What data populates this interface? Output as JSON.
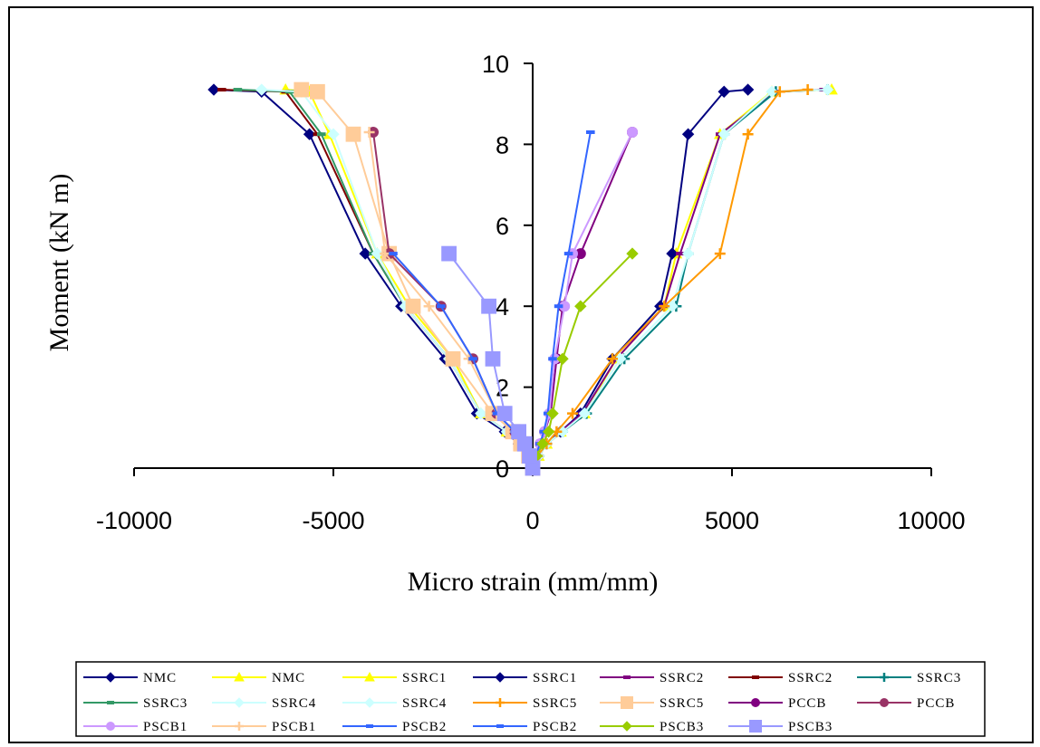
{
  "chart_data": {
    "type": "line",
    "title": "",
    "xlabel": "Micro strain (mm/mm)",
    "ylabel": "Moment (kN m)",
    "xlim": [
      -10000,
      10000
    ],
    "ylim": [
      0,
      10
    ],
    "x_ticks": [
      "-10000",
      "-5000",
      "0",
      "5000",
      "10000"
    ],
    "y_ticks": [
      "0",
      "2",
      "4",
      "6",
      "8",
      "10"
    ],
    "legend_position": "bottom",
    "series": [
      {
        "name": "NMC",
        "color": "#000080",
        "marker": "diamond",
        "x": [
          0,
          -120,
          -350,
          -700,
          -1400,
          -2200,
          -3300,
          -4200,
          -5600,
          -6800,
          -8000
        ],
        "y": [
          0,
          0.3,
          0.6,
          0.9,
          1.35,
          2.7,
          4.0,
          5.3,
          8.25,
          9.3,
          9.35
        ]
      },
      {
        "name": "NMC",
        "color": "#FFFF00",
        "marker": "triangle",
        "x": [
          0,
          150,
          350,
          700,
          1300,
          2100,
          3300,
          3600,
          4700,
          6000,
          7500
        ],
        "y": [
          0,
          0.3,
          0.6,
          0.9,
          1.35,
          2.7,
          4.0,
          5.3,
          8.25,
          9.3,
          9.35
        ]
      },
      {
        "name": "SSRC1",
        "color": "#FFFF00",
        "marker": "triangle",
        "x": [
          0,
          -120,
          -300,
          -650,
          -1300,
          -2000,
          -3100,
          -3900,
          -5100,
          -5600,
          -6200
        ],
        "y": [
          0,
          0.3,
          0.6,
          0.9,
          1.35,
          2.7,
          4.0,
          5.3,
          8.25,
          9.3,
          9.35
        ]
      },
      {
        "name": "SSRC1",
        "color": "#000080",
        "marker": "diamond",
        "x": [
          0,
          150,
          350,
          700,
          1200,
          2000,
          3200,
          3500,
          3900,
          4800,
          5400
        ],
        "y": [
          0,
          0.3,
          0.6,
          0.9,
          1.35,
          2.7,
          4.0,
          5.3,
          8.25,
          9.3,
          9.35
        ]
      },
      {
        "name": "SSRC2",
        "color": "#800080",
        "marker": "dash",
        "x": [
          0,
          150,
          350,
          700,
          1250,
          2100,
          3300,
          3700,
          4700,
          6100,
          7300
        ],
        "y": [
          0,
          0.3,
          0.6,
          0.9,
          1.35,
          2.7,
          4.0,
          5.3,
          8.25,
          9.3,
          9.35
        ]
      },
      {
        "name": "SSRC2",
        "color": "#800000",
        "marker": "dash",
        "x": [
          0,
          -120,
          -320,
          -650,
          -1300,
          -2100,
          -3200,
          -4000,
          -5400,
          -6200,
          -7800
        ],
        "y": [
          0,
          0.3,
          0.6,
          0.9,
          1.35,
          2.7,
          4.0,
          5.3,
          8.25,
          9.3,
          9.35
        ]
      },
      {
        "name": "SSRC3",
        "color": "#008080",
        "marker": "plus",
        "x": [
          0,
          150,
          350,
          750,
          1350,
          2300,
          3600,
          3900,
          4800,
          6100,
          7400
        ],
        "y": [
          0,
          0.3,
          0.6,
          0.9,
          1.35,
          2.7,
          4.0,
          5.3,
          8.25,
          9.3,
          9.35
        ]
      },
      {
        "name": "SSRC3",
        "color": "#339966",
        "marker": "dash",
        "x": [
          0,
          -120,
          -330,
          -650,
          -1300,
          -2100,
          -3200,
          -4000,
          -5300,
          -6100,
          -7400
        ],
        "y": [
          0,
          0.3,
          0.6,
          0.9,
          1.35,
          2.7,
          4.0,
          5.3,
          8.25,
          9.3,
          9.35
        ]
      },
      {
        "name": "SSRC4",
        "color": "#CCFFFF",
        "marker": "diamond",
        "x": [
          0,
          150,
          350,
          750,
          1300,
          2200,
          3500,
          3900,
          4800,
          6000,
          7400
        ],
        "y": [
          0,
          0.3,
          0.6,
          0.9,
          1.35,
          2.7,
          4.0,
          5.3,
          8.25,
          9.3,
          9.35
        ]
      },
      {
        "name": "SSRC4",
        "color": "#CCFFFF",
        "marker": "diamond",
        "x": [
          0,
          -120,
          -330,
          -650,
          -1300,
          -2100,
          -3200,
          -3900,
          -5000,
          -5800,
          -6800
        ],
        "y": [
          0,
          0.3,
          0.6,
          0.9,
          1.35,
          2.7,
          4.0,
          5.3,
          8.25,
          9.3,
          9.35
        ]
      },
      {
        "name": "SSRC5",
        "color": "#FF9900",
        "marker": "plus",
        "x": [
          0,
          120,
          350,
          600,
          1000,
          2000,
          3300,
          4700,
          5400,
          6200,
          6900
        ],
        "y": [
          0,
          0.3,
          0.6,
          0.9,
          1.35,
          2.7,
          4.0,
          5.3,
          8.25,
          9.3,
          9.35
        ]
      },
      {
        "name": "SSRC5",
        "color": "#FFCC99",
        "marker": "square",
        "x": [
          0,
          -100,
          -300,
          -500,
          -1000,
          -2000,
          -3000,
          -3600,
          -4500,
          -5400,
          -5800
        ],
        "y": [
          0,
          0.3,
          0.6,
          0.9,
          1.35,
          2.7,
          4.0,
          5.3,
          8.25,
          9.3,
          9.35
        ]
      },
      {
        "name": "PCCB",
        "color": "#800080",
        "marker": "circle",
        "x": [
          0,
          80,
          200,
          300,
          450,
          600,
          750,
          1200,
          2500
        ],
        "y": [
          0,
          0.3,
          0.6,
          0.9,
          1.35,
          2.7,
          4.0,
          5.3,
          8.3
        ]
      },
      {
        "name": "PCCB",
        "color": "#993366",
        "marker": "circle",
        "x": [
          0,
          -100,
          -250,
          -450,
          -900,
          -1500,
          -2300,
          -3600,
          -4000
        ],
        "y": [
          0,
          0.3,
          0.6,
          0.9,
          1.35,
          2.7,
          4.0,
          5.3,
          8.3
        ]
      },
      {
        "name": "PSCB1",
        "color": "#CC99FF",
        "marker": "circle",
        "x": [
          0,
          80,
          180,
          300,
          420,
          550,
          800,
          1000,
          2500
        ],
        "y": [
          0,
          0.3,
          0.6,
          0.9,
          1.35,
          2.7,
          4.0,
          5.3,
          8.3
        ]
      },
      {
        "name": "PSCB1",
        "color": "#FFCC99",
        "marker": "plus",
        "x": [
          0,
          -100,
          -250,
          -450,
          -900,
          -1600,
          -2600,
          -3700,
          -4100
        ],
        "y": [
          0,
          0.3,
          0.6,
          0.9,
          1.35,
          2.7,
          4.0,
          5.3,
          8.3
        ]
      },
      {
        "name": "PSCB2",
        "color": "#3366FF",
        "marker": "dash",
        "x": [
          0,
          80,
          180,
          280,
          380,
          500,
          650,
          900,
          1450
        ],
        "y": [
          0,
          0.3,
          0.6,
          0.9,
          1.35,
          2.7,
          4.0,
          5.3,
          8.3
        ]
      },
      {
        "name": "PSCB2",
        "color": "#3366FF",
        "marker": "dash",
        "x": [
          0,
          -100,
          -250,
          -450,
          -900,
          -1500,
          -2300,
          -3500
        ],
        "y": [
          0,
          0.3,
          0.6,
          0.9,
          1.35,
          2.7,
          4.0,
          5.3
        ]
      },
      {
        "name": "PSCB3",
        "color": "#99CC00",
        "marker": "diamond",
        "x": [
          0,
          100,
          250,
          400,
          500,
          750,
          1200,
          2500
        ],
        "y": [
          0,
          0.3,
          0.6,
          0.9,
          1.35,
          2.7,
          4.0,
          5.3
        ]
      },
      {
        "name": "PSCB3",
        "color": "#9999FF",
        "marker": "square",
        "x": [
          0,
          -80,
          -200,
          -350,
          -700,
          -1000,
          -1100,
          -2100
        ],
        "y": [
          0,
          0.3,
          0.6,
          0.9,
          1.35,
          2.7,
          4.0,
          5.3
        ]
      }
    ]
  }
}
